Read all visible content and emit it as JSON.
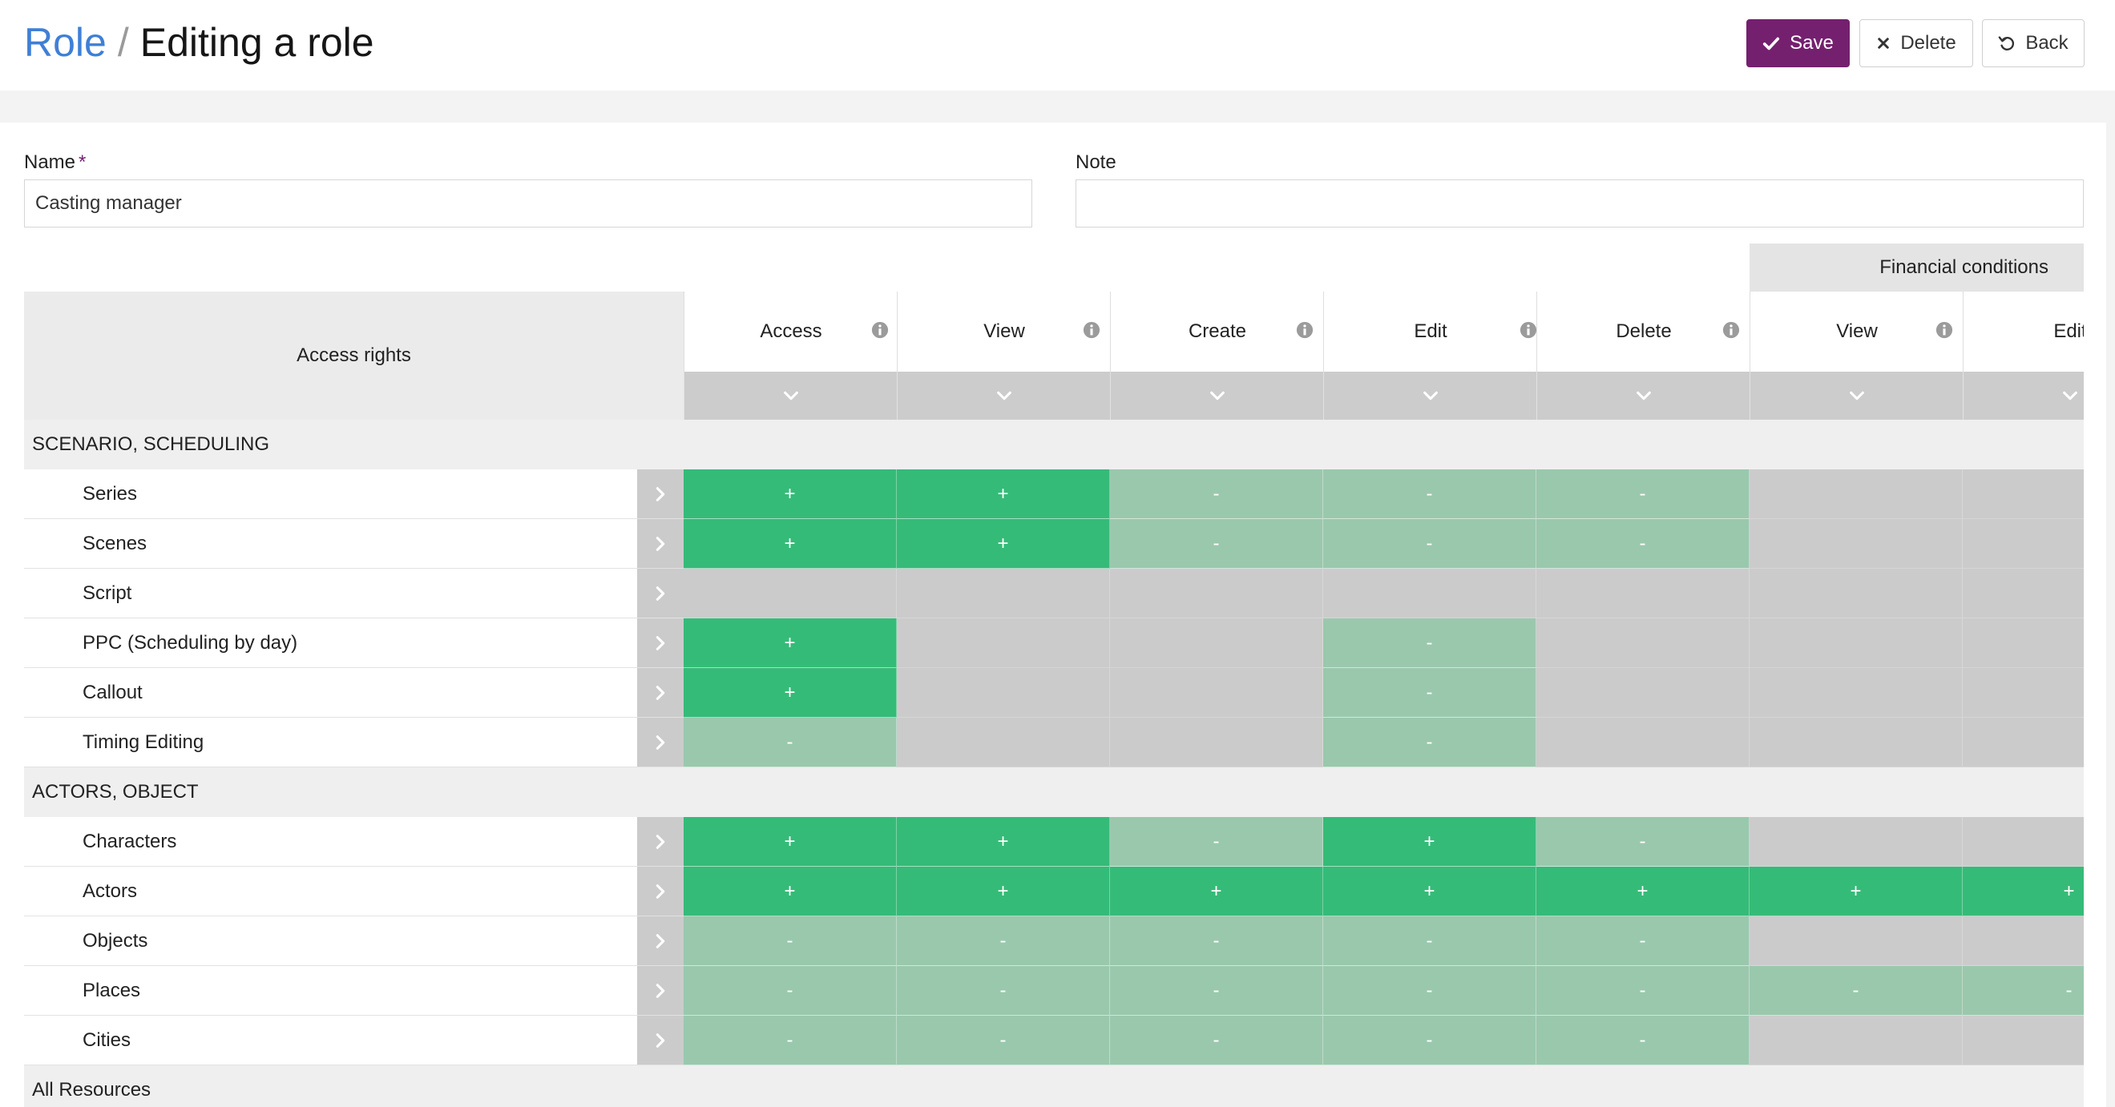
{
  "header": {
    "breadcrumb_link": "Role",
    "breadcrumb_sep": "/",
    "page_title": "Editing a role",
    "buttons": {
      "save": "Save",
      "delete": "Delete",
      "back": "Back"
    }
  },
  "form": {
    "name_label": "Name",
    "name_required_mark": "*",
    "name_value": "Casting manager",
    "note_label": "Note",
    "note_value": ""
  },
  "table": {
    "rights_header": "Access rights",
    "financial_group_header": "Financial conditions",
    "columns": [
      "Access",
      "View",
      "Create",
      "Edit",
      "Delete",
      "View",
      "Edit"
    ],
    "sections": [
      {
        "title": "SCENARIO, SCHEDULING",
        "rows": [
          {
            "name": "Series",
            "cells": [
              "+",
              "+",
              "-",
              "-",
              "-",
              "",
              ""
            ]
          },
          {
            "name": "Scenes",
            "cells": [
              "+",
              "+",
              "-",
              "-",
              "-",
              "",
              ""
            ]
          },
          {
            "name": "Script",
            "cells": [
              "",
              "",
              "",
              "",
              "",
              "",
              ""
            ]
          },
          {
            "name": "PPC (Scheduling by day)",
            "cells": [
              "+",
              "",
              "",
              "-",
              "",
              "",
              ""
            ]
          },
          {
            "name": "Callout",
            "cells": [
              "+",
              "",
              "",
              "-",
              "",
              "",
              ""
            ]
          },
          {
            "name": "Timing Editing",
            "cells": [
              "-",
              "",
              "",
              "-",
              "",
              "",
              ""
            ]
          }
        ]
      },
      {
        "title": "ACTORS, OBJECT",
        "rows": [
          {
            "name": "Characters",
            "cells": [
              "+",
              "+",
              "-",
              "+",
              "-",
              "",
              ""
            ]
          },
          {
            "name": "Actors",
            "cells": [
              "+",
              "+",
              "+",
              "+",
              "+",
              "+",
              "+"
            ]
          },
          {
            "name": "Objects",
            "cells": [
              "-",
              "-",
              "-",
              "-",
              "-",
              "",
              ""
            ]
          },
          {
            "name": "Places",
            "cells": [
              "-",
              "-",
              "-",
              "-",
              "-",
              "-",
              "-"
            ]
          },
          {
            "name": "Cities",
            "cells": [
              "-",
              "-",
              "-",
              "-",
              "-",
              "",
              ""
            ]
          }
        ]
      },
      {
        "title": "All Resources",
        "rows": []
      }
    ]
  },
  "colors": {
    "brand": "#74206f",
    "link": "#3f7fd6",
    "granted": "#35bb78",
    "denied": "#9ac8ad",
    "not_applicable": "#cccbcc"
  },
  "icons": {
    "save": "check-icon",
    "delete": "x-icon",
    "back": "undo-icon",
    "column_info": "info-icon",
    "column_bulk": "chevron-down-icon",
    "row_expand": "chevron-right-icon"
  }
}
